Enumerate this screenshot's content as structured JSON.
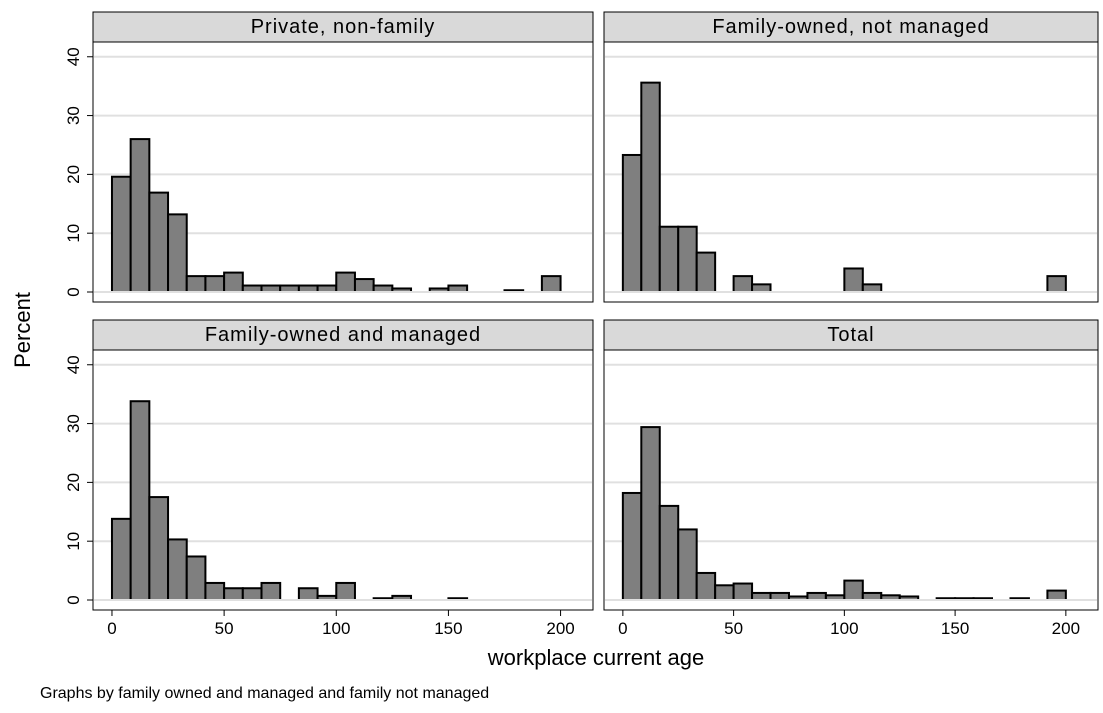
{
  "chart_data": {
    "type": "bar",
    "subtype": "histogram-facets",
    "bin_width": 8.33,
    "x_ticks": [
      0,
      50,
      100,
      150,
      200
    ],
    "y_ticks": [
      0,
      10,
      20,
      30,
      40
    ],
    "xlim": [
      -4,
      210
    ],
    "ylim": [
      0,
      42
    ],
    "xlabel": "workplace current age",
    "ylabel": "Percent",
    "note": "Graphs by family owned and managed and family not managed",
    "grid": true,
    "bar_color": "#7f7f7f",
    "panel_header_color": "#d9d9d9",
    "panels": [
      {
        "title": "Private, non-family",
        "bins": [
          {
            "x0": 0,
            "v": 19.6
          },
          {
            "x0": 8.33,
            "v": 26.0
          },
          {
            "x0": 16.67,
            "v": 16.9
          },
          {
            "x0": 25,
            "v": 13.2
          },
          {
            "x0": 33.33,
            "v": 2.7
          },
          {
            "x0": 41.67,
            "v": 2.7
          },
          {
            "x0": 50,
            "v": 3.3
          },
          {
            "x0": 58.33,
            "v": 1.1
          },
          {
            "x0": 66.67,
            "v": 1.1
          },
          {
            "x0": 75,
            "v": 1.1
          },
          {
            "x0": 83.33,
            "v": 1.1
          },
          {
            "x0": 91.67,
            "v": 1.1
          },
          {
            "x0": 100,
            "v": 3.3
          },
          {
            "x0": 108.33,
            "v": 2.2
          },
          {
            "x0": 116.67,
            "v": 1.1
          },
          {
            "x0": 125,
            "v": 0.6
          },
          {
            "x0": 141.67,
            "v": 0.6
          },
          {
            "x0": 150,
            "v": 1.1
          },
          {
            "x0": 175,
            "v": 0.3
          },
          {
            "x0": 191.67,
            "v": 2.7
          }
        ]
      },
      {
        "title": "Family-owned, not managed",
        "bins": [
          {
            "x0": 0,
            "v": 23.3
          },
          {
            "x0": 8.33,
            "v": 35.6
          },
          {
            "x0": 16.67,
            "v": 11.1
          },
          {
            "x0": 25,
            "v": 11.1
          },
          {
            "x0": 33.33,
            "v": 6.7
          },
          {
            "x0": 50,
            "v": 2.7
          },
          {
            "x0": 58.33,
            "v": 1.3
          },
          {
            "x0": 100,
            "v": 4.0
          },
          {
            "x0": 108.33,
            "v": 1.3
          },
          {
            "x0": 191.67,
            "v": 2.7
          }
        ]
      },
      {
        "title": "Family-owned and managed",
        "bins": [
          {
            "x0": 0,
            "v": 13.8
          },
          {
            "x0": 8.33,
            "v": 33.8
          },
          {
            "x0": 16.67,
            "v": 17.5
          },
          {
            "x0": 25,
            "v": 10.3
          },
          {
            "x0": 33.33,
            "v": 7.4
          },
          {
            "x0": 41.67,
            "v": 2.9
          },
          {
            "x0": 50,
            "v": 2.0
          },
          {
            "x0": 58.33,
            "v": 2.0
          },
          {
            "x0": 66.67,
            "v": 2.9
          },
          {
            "x0": 83.33,
            "v": 2.0
          },
          {
            "x0": 91.67,
            "v": 0.7
          },
          {
            "x0": 100,
            "v": 2.9
          },
          {
            "x0": 116.67,
            "v": 0.3
          },
          {
            "x0": 125,
            "v": 0.7
          },
          {
            "x0": 150,
            "v": 0.3
          }
        ]
      },
      {
        "title": "Total",
        "bins": [
          {
            "x0": 0,
            "v": 18.2
          },
          {
            "x0": 8.33,
            "v": 29.4
          },
          {
            "x0": 16.67,
            "v": 16.0
          },
          {
            "x0": 25,
            "v": 12.0
          },
          {
            "x0": 33.33,
            "v": 4.6
          },
          {
            "x0": 41.67,
            "v": 2.5
          },
          {
            "x0": 50,
            "v": 2.8
          },
          {
            "x0": 58.33,
            "v": 1.2
          },
          {
            "x0": 66.67,
            "v": 1.2
          },
          {
            "x0": 75,
            "v": 0.6
          },
          {
            "x0": 83.33,
            "v": 1.2
          },
          {
            "x0": 91.67,
            "v": 0.8
          },
          {
            "x0": 100,
            "v": 3.3
          },
          {
            "x0": 108.33,
            "v": 1.2
          },
          {
            "x0": 116.67,
            "v": 0.8
          },
          {
            "x0": 125,
            "v": 0.6
          },
          {
            "x0": 141.67,
            "v": 0.3
          },
          {
            "x0": 150,
            "v": 0.3
          },
          {
            "x0": 158.33,
            "v": 0.3
          },
          {
            "x0": 175,
            "v": 0.3
          },
          {
            "x0": 191.67,
            "v": 1.6
          }
        ]
      }
    ]
  }
}
